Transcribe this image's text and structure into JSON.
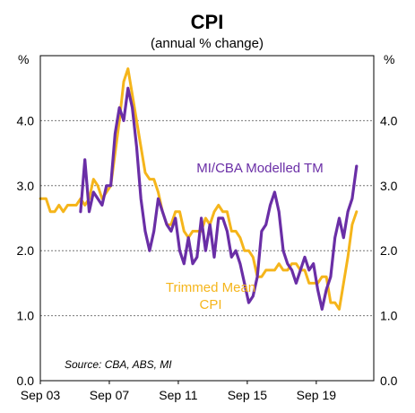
{
  "chart_data": {
    "type": "line",
    "title": "CPI",
    "subtitle": "(annual % change)",
    "unit_left": "%",
    "unit_right": "%",
    "source": "Source: CBA, ABS, MI",
    "ylim": [
      0,
      5
    ],
    "y_ticks": [
      "0.0",
      "1.0",
      "2.0",
      "3.0",
      "4.0"
    ],
    "x_ticks": [
      "Sep 03",
      "Sep 07",
      "Sep 11",
      "Sep 15",
      "Sep 19"
    ],
    "xlim": [
      2003.667,
      2023.0
    ],
    "grid": "horizontal dotted",
    "series": [
      {
        "name": "Trimmed Mean CPI",
        "label_lines": [
          "Trimmed Mean",
          "CPI"
        ],
        "color": "#F5B51B",
        "points": [
          [
            2003.67,
            2.8
          ],
          [
            2004.0,
            2.8
          ],
          [
            2004.25,
            2.6
          ],
          [
            2004.5,
            2.6
          ],
          [
            2004.75,
            2.7
          ],
          [
            2005.0,
            2.6
          ],
          [
            2005.25,
            2.7
          ],
          [
            2005.5,
            2.7
          ],
          [
            2005.75,
            2.7
          ],
          [
            2006.0,
            2.8
          ],
          [
            2006.25,
            2.7
          ],
          [
            2006.5,
            2.8
          ],
          [
            2006.75,
            3.1
          ],
          [
            2007.0,
            3.0
          ],
          [
            2007.25,
            2.8
          ],
          [
            2007.5,
            2.9
          ],
          [
            2007.75,
            3.0
          ],
          [
            2008.0,
            3.5
          ],
          [
            2008.25,
            4.0
          ],
          [
            2008.5,
            4.6
          ],
          [
            2008.75,
            4.8
          ],
          [
            2009.0,
            4.4
          ],
          [
            2009.25,
            4.0
          ],
          [
            2009.5,
            3.6
          ],
          [
            2009.75,
            3.2
          ],
          [
            2010.0,
            3.1
          ],
          [
            2010.25,
            3.1
          ],
          [
            2010.5,
            2.9
          ],
          [
            2010.75,
            2.6
          ],
          [
            2011.0,
            2.4
          ],
          [
            2011.25,
            2.4
          ],
          [
            2011.5,
            2.6
          ],
          [
            2011.75,
            2.6
          ],
          [
            2012.0,
            2.3
          ],
          [
            2012.25,
            2.2
          ],
          [
            2012.5,
            2.3
          ],
          [
            2012.75,
            2.3
          ],
          [
            2013.0,
            2.3
          ],
          [
            2013.25,
            2.5
          ],
          [
            2013.5,
            2.4
          ],
          [
            2013.75,
            2.6
          ],
          [
            2014.0,
            2.7
          ],
          [
            2014.25,
            2.6
          ],
          [
            2014.5,
            2.6
          ],
          [
            2014.75,
            2.3
          ],
          [
            2015.0,
            2.3
          ],
          [
            2015.25,
            2.2
          ],
          [
            2015.5,
            2.0
          ],
          [
            2015.75,
            2.0
          ],
          [
            2016.0,
            1.9
          ],
          [
            2016.25,
            1.6
          ],
          [
            2016.5,
            1.6
          ],
          [
            2016.75,
            1.7
          ],
          [
            2017.0,
            1.7
          ],
          [
            2017.25,
            1.7
          ],
          [
            2017.5,
            1.8
          ],
          [
            2017.75,
            1.7
          ],
          [
            2018.0,
            1.7
          ],
          [
            2018.25,
            1.8
          ],
          [
            2018.5,
            1.8
          ],
          [
            2018.75,
            1.7
          ],
          [
            2019.0,
            1.7
          ],
          [
            2019.25,
            1.5
          ],
          [
            2019.5,
            1.5
          ],
          [
            2019.75,
            1.5
          ],
          [
            2020.0,
            1.6
          ],
          [
            2020.25,
            1.6
          ],
          [
            2020.5,
            1.2
          ],
          [
            2020.75,
            1.2
          ],
          [
            2021.0,
            1.1
          ],
          [
            2021.25,
            1.5
          ],
          [
            2021.5,
            1.9
          ],
          [
            2021.75,
            2.4
          ],
          [
            2022.0,
            2.6
          ]
        ]
      },
      {
        "name": "MI/CBA Modelled TM",
        "label_lines": [
          "MI/CBA Modelled TM"
        ],
        "color": "#6A2EA6",
        "points": [
          [
            2006.0,
            2.6
          ],
          [
            2006.25,
            3.4
          ],
          [
            2006.5,
            2.6
          ],
          [
            2006.75,
            2.9
          ],
          [
            2007.0,
            2.8
          ],
          [
            2007.25,
            2.7
          ],
          [
            2007.5,
            3.0
          ],
          [
            2007.75,
            3.0
          ],
          [
            2008.0,
            3.8
          ],
          [
            2008.25,
            4.2
          ],
          [
            2008.5,
            4.0
          ],
          [
            2008.75,
            4.5
          ],
          [
            2009.0,
            4.2
          ],
          [
            2009.25,
            3.6
          ],
          [
            2009.5,
            2.8
          ],
          [
            2009.75,
            2.3
          ],
          [
            2010.0,
            2.0
          ],
          [
            2010.25,
            2.3
          ],
          [
            2010.5,
            2.8
          ],
          [
            2010.75,
            2.6
          ],
          [
            2011.0,
            2.4
          ],
          [
            2011.25,
            2.3
          ],
          [
            2011.5,
            2.5
          ],
          [
            2011.75,
            2.0
          ],
          [
            2012.0,
            1.8
          ],
          [
            2012.25,
            2.2
          ],
          [
            2012.5,
            1.8
          ],
          [
            2012.75,
            1.9
          ],
          [
            2013.0,
            2.5
          ],
          [
            2013.25,
            2.0
          ],
          [
            2013.5,
            2.4
          ],
          [
            2013.75,
            1.9
          ],
          [
            2014.0,
            2.5
          ],
          [
            2014.25,
            2.5
          ],
          [
            2014.5,
            2.3
          ],
          [
            2014.75,
            1.9
          ],
          [
            2015.0,
            2.0
          ],
          [
            2015.25,
            1.8
          ],
          [
            2015.5,
            1.5
          ],
          [
            2015.75,
            1.2
          ],
          [
            2016.0,
            1.3
          ],
          [
            2016.25,
            1.6
          ],
          [
            2016.5,
            2.3
          ],
          [
            2016.75,
            2.4
          ],
          [
            2017.0,
            2.7
          ],
          [
            2017.25,
            2.9
          ],
          [
            2017.5,
            2.6
          ],
          [
            2017.75,
            2.0
          ],
          [
            2018.0,
            1.8
          ],
          [
            2018.25,
            1.7
          ],
          [
            2018.5,
            1.5
          ],
          [
            2018.75,
            1.7
          ],
          [
            2019.0,
            1.9
          ],
          [
            2019.25,
            1.7
          ],
          [
            2019.5,
            1.8
          ],
          [
            2019.75,
            1.4
          ],
          [
            2020.0,
            1.1
          ],
          [
            2020.25,
            1.4
          ],
          [
            2020.5,
            1.6
          ],
          [
            2020.75,
            2.2
          ],
          [
            2021.0,
            2.5
          ],
          [
            2021.25,
            2.2
          ],
          [
            2021.5,
            2.6
          ],
          [
            2021.75,
            2.8
          ],
          [
            2022.0,
            3.3
          ]
        ]
      }
    ]
  }
}
